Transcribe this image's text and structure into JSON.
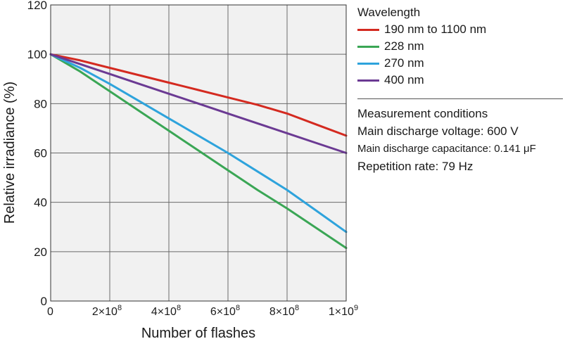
{
  "chart_data": {
    "type": "line",
    "xlabel": "Number of flashes",
    "ylabel": "Relative irradiance (%)",
    "xlim": [
      0,
      1000000000
    ],
    "ylim": [
      0,
      120
    ],
    "grid": true,
    "legend_placement": "right",
    "x_ticks": [
      {
        "value": 0,
        "label": "0"
      },
      {
        "value": 200000000,
        "base": "2×10",
        "exp": "8"
      },
      {
        "value": 400000000,
        "base": "4×10",
        "exp": "8"
      },
      {
        "value": 600000000,
        "base": "6×10",
        "exp": "8"
      },
      {
        "value": 800000000,
        "base": "8×10",
        "exp": "8"
      },
      {
        "value": 1000000000,
        "base": "1×10",
        "exp": "9"
      }
    ],
    "y_ticks": [
      0,
      20,
      40,
      60,
      80,
      100,
      120
    ],
    "y_tick_labels": [
      "0",
      "20",
      "40",
      "60",
      "80",
      "100",
      "120"
    ],
    "legend_title": "Wavelength",
    "series": [
      {
        "name": "190 nm to 1100 nm",
        "color": "#d42a20",
        "x": [
          0,
          100000000,
          200000000,
          300000000,
          400000000,
          500000000,
          600000000,
          700000000,
          800000000,
          900000000,
          1000000000
        ],
        "y": [
          100,
          97.5,
          94.5,
          91.5,
          88.5,
          85.5,
          82.5,
          79.5,
          76,
          71.5,
          67
        ]
      },
      {
        "name": "228 nm",
        "color": "#3aa655",
        "x": [
          0,
          50000000,
          100000000,
          200000000,
          300000000,
          400000000,
          500000000,
          600000000,
          700000000,
          800000000,
          900000000,
          1000000000
        ],
        "y": [
          100,
          96.5,
          93,
          85,
          77,
          69,
          61,
          53,
          45,
          37.5,
          29.5,
          21.5
        ]
      },
      {
        "name": "270 nm",
        "color": "#2ea3dc",
        "x": [
          0,
          100000000,
          200000000,
          300000000,
          400000000,
          500000000,
          600000000,
          700000000,
          800000000,
          900000000,
          1000000000
        ],
        "y": [
          100,
          94.5,
          88,
          81,
          74,
          67,
          60,
          52.5,
          45,
          36.5,
          28
        ]
      },
      {
        "name": "400 nm",
        "color": "#6b3a93",
        "x": [
          0,
          100000000,
          200000000,
          300000000,
          400000000,
          500000000,
          600000000,
          700000000,
          800000000,
          900000000,
          1000000000
        ],
        "y": [
          100,
          96,
          92,
          88,
          84,
          80,
          76,
          72,
          68,
          64,
          60
        ]
      }
    ]
  },
  "conditions": {
    "title": "Measurement conditions",
    "voltage": "Main discharge voltage: 600 V",
    "capacitance": "Main discharge capacitance: 0.141 μF",
    "repetition": "Repetition rate: 79 Hz"
  }
}
